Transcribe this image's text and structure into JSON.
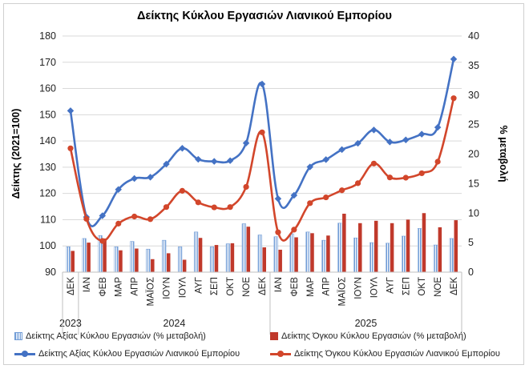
{
  "chart_data": {
    "type": "bar+line",
    "title": "Δείκτης Κύκλου Εργασιών Λιανικού Εμπορίου",
    "ylabel_left": "Δείκτης (2021=100)",
    "ylabel_right": "% μεταβολή",
    "ylim_left": [
      90,
      180
    ],
    "ylim_right": [
      0,
      40
    ],
    "yticks_left": [
      "90",
      "100",
      "110",
      "120",
      "130",
      "140",
      "150",
      "160",
      "170",
      "180"
    ],
    "yticks_right": [
      "0",
      "5",
      "10",
      "15",
      "20",
      "25",
      "30",
      "35",
      "40"
    ],
    "categories": [
      "ΔΕΚ",
      "ΙΑΝ",
      "ΦΕΒ",
      "ΜΑΡ",
      "ΑΠΡ",
      "ΜΑΪΟΣ",
      "ΙΟΥΝ",
      "ΙΟΥΛ",
      "ΑΥΓ",
      "ΣΕΠ",
      "ΟΚΤ",
      "ΝΟΕ",
      "ΔΕΚ",
      "ΙΑΝ",
      "ΦΕΒ",
      "ΜΑΡ",
      "ΑΠΡ",
      "ΜΑΪΟΣ",
      "ΙΟΥΝ",
      "ΙΟΥΛ",
      "ΑΥΓ",
      "ΣΕΠ",
      "ΟΚΤ",
      "ΝΟΕ",
      "ΔΕΚ"
    ],
    "year_labels": [
      {
        "label": "2023",
        "start": 0,
        "end": 0
      },
      {
        "label": "2024",
        "start": 1,
        "end": 12
      },
      {
        "label": "2025",
        "start": 13,
        "end": 24
      }
    ],
    "series": [
      {
        "name": "Δείκτης Αξίας Κύκλου Εργασιών (% μεταβολή)",
        "kind": "bar",
        "axis": "right",
        "style": "hatched",
        "color": "#6f9bd6",
        "values": [
          4.3,
          5.7,
          6.2,
          4.3,
          5.2,
          3.9,
          5.4,
          4.3,
          6.8,
          4.3,
          4.8,
          8.2,
          6.3,
          6.0,
          6.5,
          6.8,
          5.4,
          8.3,
          5.8,
          5.0,
          4.9,
          6.1,
          7.4,
          4.6,
          5.7
        ]
      },
      {
        "name": "Δείκτης Όγκου Κύκλου Εργασιών (% μεταβολή)",
        "kind": "bar",
        "axis": "right",
        "style": "solid",
        "color": "#c0392b",
        "values": [
          3.6,
          5.0,
          5.7,
          3.7,
          4.0,
          2.2,
          3.2,
          2.1,
          5.8,
          4.6,
          4.9,
          7.7,
          4.2,
          3.8,
          5.9,
          6.6,
          6.2,
          9.9,
          8.3,
          8.7,
          8.3,
          8.9,
          10.0,
          7.6,
          8.8
        ]
      },
      {
        "name": "Δείκτης Αξίας Κύκλου Εργασιών Λιανικού Εμπορίου",
        "kind": "line",
        "axis": "left",
        "color": "#4472c4",
        "values": [
          151.5,
          111,
          111.5,
          121.5,
          125.7,
          126.2,
          131.2,
          137.2,
          133.0,
          132.2,
          132.5,
          139.2,
          161.7,
          118.0,
          119.3,
          130.1,
          132.9,
          136.7,
          139.1,
          144.2,
          139.6,
          140.4,
          142.6,
          145.2,
          171.2
        ]
      },
      {
        "name": "Δείκτης Όγκου Κύκλου Εργασιών Λιανικού Εμπορίου",
        "kind": "line",
        "axis": "left",
        "color": "#d2462b",
        "values": [
          137.2,
          110.3,
          101.9,
          108.5,
          111.2,
          110.2,
          114.8,
          121.0,
          116.6,
          114.7,
          114.8,
          122.5,
          143.3,
          105.2,
          106.2,
          116.3,
          118.5,
          121.2,
          123.9,
          131.4,
          126.1,
          126.0,
          127.7,
          132.1,
          156.3
        ]
      }
    ],
    "legend_position": "bottom",
    "grid": true
  }
}
